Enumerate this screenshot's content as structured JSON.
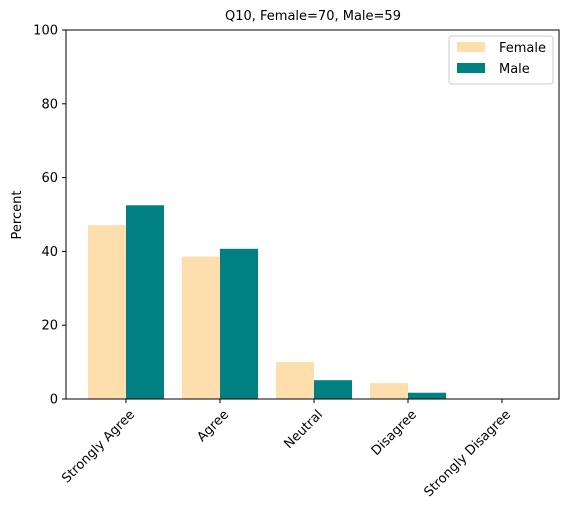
{
  "chart_data": {
    "type": "bar",
    "title": "Q10, Female=70, Male=59",
    "xlabel": "",
    "ylabel": "Percent",
    "ylim": [
      0,
      100
    ],
    "yticks": [
      0,
      20,
      40,
      60,
      80,
      100
    ],
    "categories": [
      "Strongly Agree",
      "Agree",
      "Neutral",
      "Disagree",
      "Strongly Disagree"
    ],
    "series": [
      {
        "name": "Female",
        "color": "#FFDEAD",
        "values": [
          47.1,
          38.6,
          10.0,
          4.3,
          0.0
        ]
      },
      {
        "name": "Male",
        "color": "#008080",
        "values": [
          52.5,
          40.7,
          5.1,
          1.7,
          0.0
        ]
      }
    ],
    "legend": {
      "position": "top-right",
      "entries": [
        "Female",
        "Male"
      ]
    },
    "grid": false
  }
}
